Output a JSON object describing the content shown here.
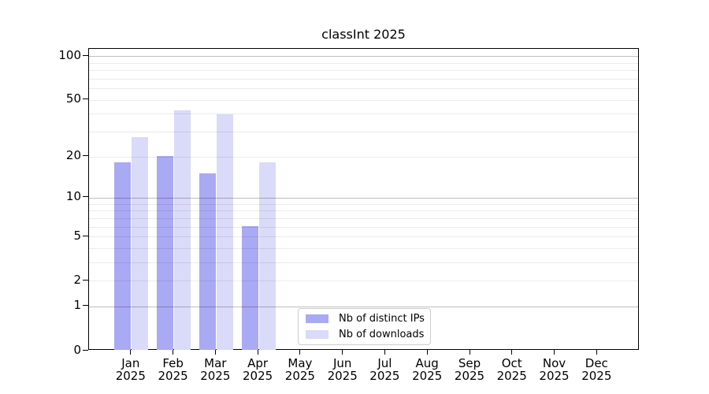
{
  "title": "classInt 2025",
  "chart_data": {
    "type": "bar",
    "title": "classInt 2025",
    "year_label": "2025",
    "categories": [
      "Jan",
      "Feb",
      "Mar",
      "Apr",
      "May",
      "Jun",
      "Jul",
      "Aug",
      "Sep",
      "Oct",
      "Nov",
      "Dec"
    ],
    "series": [
      {
        "name": "Nb of distinct IPs",
        "color": "#a9a9f4",
        "values": [
          18,
          20,
          15,
          6,
          0,
          0,
          0,
          0,
          0,
          0,
          0,
          0
        ]
      },
      {
        "name": "Nb of downloads",
        "color": "#dadaf9",
        "values": [
          27,
          42,
          39,
          18,
          0,
          0,
          0,
          0,
          0,
          0,
          0,
          0
        ]
      }
    ],
    "yscale": "log1p",
    "ylim": [
      0,
      113
    ],
    "yticks": [
      0,
      1,
      2,
      5,
      10,
      20,
      50,
      100
    ],
    "gridline_values": [
      1,
      2,
      3,
      4,
      5,
      6,
      7,
      8,
      9,
      10,
      20,
      30,
      40,
      50,
      60,
      70,
      80,
      90,
      100
    ],
    "decade_gridlines": [
      1,
      10,
      100
    ],
    "grid": true,
    "legend_position": "lower center",
    "xlabel": "",
    "ylabel": ""
  }
}
